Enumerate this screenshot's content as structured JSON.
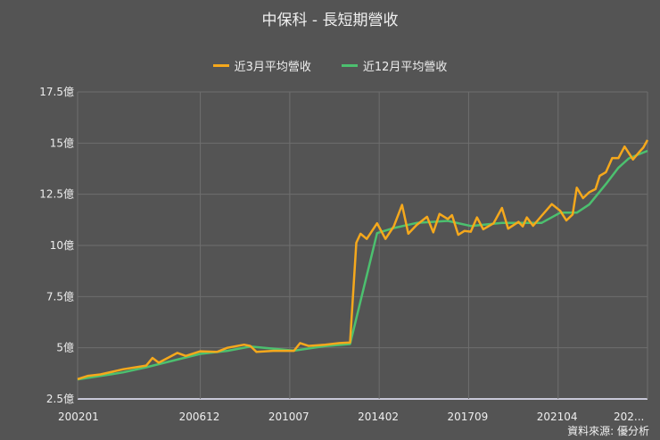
{
  "title": "中保科 - 長短期營收",
  "source": "資料來源: 優分析",
  "colors": {
    "background": "#545454",
    "grid": "#6e6e6e",
    "series_3m": "#f5a81c",
    "series_12m": "#4cc06f"
  },
  "chart_data": {
    "type": "line",
    "title": "中保科 - 長短期營收",
    "xlabel": "",
    "ylabel": "",
    "ylim": [
      2.5,
      17.5
    ],
    "y_ticks": [
      "2.5億",
      "5億",
      "7.5億",
      "10億",
      "12.5億",
      "15億",
      "17.5億"
    ],
    "x_ticks": [
      "200201",
      "200612",
      "201007",
      "201402",
      "201709",
      "202104",
      "202..."
    ],
    "xlim": [
      "200201",
      "202411"
    ],
    "grid": true,
    "legend": "top",
    "series": [
      {
        "name": "近3月平均營收",
        "color": "#f5a81c",
        "points": [
          [
            "200201",
            3.47
          ],
          [
            "200206",
            3.63
          ],
          [
            "200212",
            3.7
          ],
          [
            "200311",
            3.95
          ],
          [
            "200410",
            4.13
          ],
          [
            "200501",
            4.5
          ],
          [
            "200504",
            4.27
          ],
          [
            "200601",
            4.75
          ],
          [
            "200605",
            4.6
          ],
          [
            "200612",
            4.83
          ],
          [
            "200708",
            4.8
          ],
          [
            "200801",
            5.0
          ],
          [
            "200809",
            5.15
          ],
          [
            "200812",
            5.09
          ],
          [
            "200903",
            4.8
          ],
          [
            "200911",
            4.85
          ],
          [
            "201009",
            4.85
          ],
          [
            "201012",
            5.23
          ],
          [
            "201104",
            5.09
          ],
          [
            "201112",
            5.15
          ],
          [
            "201207",
            5.23
          ],
          [
            "201212",
            5.26
          ],
          [
            "201303",
            10.13
          ],
          [
            "201305",
            10.57
          ],
          [
            "201308",
            10.32
          ],
          [
            "201401",
            11.08
          ],
          [
            "201405",
            10.32
          ],
          [
            "201409",
            10.93
          ],
          [
            "201501",
            11.98
          ],
          [
            "201504",
            10.57
          ],
          [
            "201508",
            11.0
          ],
          [
            "201601",
            11.4
          ],
          [
            "201604",
            10.64
          ],
          [
            "201607",
            11.54
          ],
          [
            "201611",
            11.29
          ],
          [
            "201701",
            11.48
          ],
          [
            "201704",
            10.52
          ],
          [
            "201707",
            10.71
          ],
          [
            "201710",
            10.67
          ],
          [
            "201801",
            11.37
          ],
          [
            "201804",
            10.79
          ],
          [
            "201809",
            11.08
          ],
          [
            "201901",
            11.83
          ],
          [
            "201904",
            10.82
          ],
          [
            "201909",
            11.15
          ],
          [
            "201911",
            10.93
          ],
          [
            "202001",
            11.37
          ],
          [
            "202004",
            10.96
          ],
          [
            "202008",
            11.44
          ],
          [
            "202101",
            12.02
          ],
          [
            "202105",
            11.69
          ],
          [
            "202108",
            11.22
          ],
          [
            "202111",
            11.51
          ],
          [
            "202201",
            12.82
          ],
          [
            "202204",
            12.31
          ],
          [
            "202207",
            12.6
          ],
          [
            "202210",
            12.75
          ],
          [
            "202212",
            13.4
          ],
          [
            "202303",
            13.58
          ],
          [
            "202306",
            14.27
          ],
          [
            "202309",
            14.27
          ],
          [
            "202312",
            14.83
          ],
          [
            "202404",
            14.2
          ],
          [
            "202407",
            14.56
          ],
          [
            "202409",
            14.78
          ],
          [
            "202411",
            15.15
          ]
        ]
      },
      {
        "name": "近12月平均營收",
        "color": "#4cc06f",
        "points": [
          [
            "200201",
            3.45
          ],
          [
            "200311",
            3.8
          ],
          [
            "200410",
            4.05
          ],
          [
            "200612",
            4.7
          ],
          [
            "200801",
            4.85
          ],
          [
            "200812",
            5.06
          ],
          [
            "201009",
            4.86
          ],
          [
            "201112",
            5.08
          ],
          [
            "201212",
            5.18
          ],
          [
            "201401",
            10.6
          ],
          [
            "201409",
            10.85
          ],
          [
            "201508",
            11.1
          ],
          [
            "201611",
            11.2
          ],
          [
            "201710",
            10.95
          ],
          [
            "201901",
            11.1
          ],
          [
            "202008",
            11.1
          ],
          [
            "202105",
            11.6
          ],
          [
            "202201",
            11.6
          ],
          [
            "202207",
            12.0
          ],
          [
            "202303",
            13.0
          ],
          [
            "202309",
            13.8
          ],
          [
            "202402",
            14.25
          ],
          [
            "202411",
            14.62
          ]
        ]
      }
    ]
  }
}
